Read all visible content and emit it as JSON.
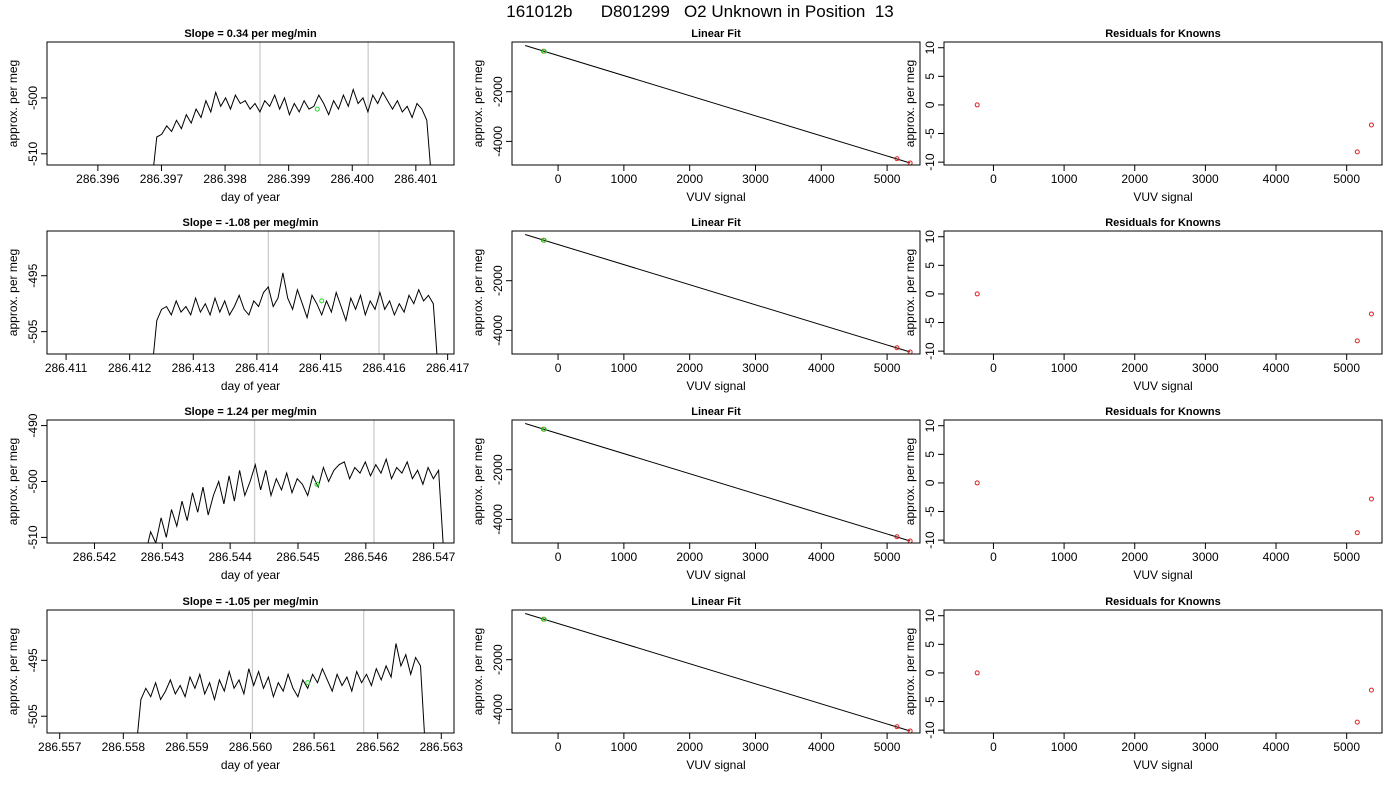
{
  "page_title": "161012b      D801299   O2 Unknown in Position  13",
  "chart_data": [
    {
      "type": "line",
      "panel": "time-series",
      "title": "Slope =  0.34  per meg/min",
      "xlabel": "day of year",
      "ylabel": "approx. per meg",
      "xlim": [
        286.3952,
        286.4016
      ],
      "ylim": [
        -512,
        -490
      ],
      "xticks": [
        "286.396",
        "286.397",
        "286.398",
        "286.399",
        "286.400",
        "286.401"
      ],
      "yticks": [
        "-500",
        "-510"
      ],
      "vlines": [
        286.39855,
        286.40025
      ],
      "x_start": 286.39685,
      "x_end": 286.40125,
      "trace_y": [
        -515,
        -507,
        -506.5,
        -505,
        -506,
        -504,
        -505.5,
        -503,
        -504.5,
        -502,
        -503.5,
        -500.5,
        -502.5,
        -499,
        -501.5,
        -500,
        -502,
        -499.5,
        -501,
        -500.5,
        -502,
        -501,
        -502.5,
        -500.5,
        -501.5,
        -499.5,
        -502,
        -500,
        -503,
        -501,
        -502.5,
        -500.5,
        -502,
        -501.5,
        -499.5,
        -501,
        -503,
        -500.5,
        -502,
        -499.5,
        -501.5,
        -498.5,
        -501,
        -500,
        -502.5,
        -499.5,
        -501,
        -499,
        -500.5,
        -502,
        -500.5,
        -502.5,
        -501.5,
        -503.5,
        -501,
        -502,
        -504,
        -515
      ],
      "marker": {
        "x": 286.39945,
        "y": -502
      }
    },
    {
      "type": "scatter",
      "panel": "linear-fit",
      "title": "Linear Fit",
      "xlabel": "VUV signal",
      "ylabel": "approx. per meg",
      "xlim": [
        -700,
        5500
      ],
      "ylim": [
        -4950,
        0
      ],
      "xticks": [
        0,
        1000,
        2000,
        3000,
        4000,
        5000
      ],
      "yticks": [
        -2000,
        -4000
      ],
      "line": {
        "x": [
          -500,
          5350
        ],
        "y": [
          -140,
          -4870
        ]
      },
      "knowns": [
        {
          "x": -220,
          "y": -370
        },
        {
          "x": 5150,
          "y": -4700
        },
        {
          "x": 5350,
          "y": -4870
        }
      ],
      "unknown": {
        "x": -210,
        "y": -375
      }
    },
    {
      "type": "scatter",
      "panel": "residuals",
      "title": "Residuals for Knowns",
      "xlabel": "VUV signal",
      "ylabel": "approx. per meg",
      "xlim": [
        -700,
        5500
      ],
      "ylim": [
        -10.5,
        11
      ],
      "xticks": [
        0,
        1000,
        2000,
        3000,
        4000,
        5000
      ],
      "yticks": [
        10,
        5,
        0,
        -5,
        -10
      ],
      "points": [
        {
          "x": -230,
          "y": 0
        },
        {
          "x": 5150,
          "y": -8.2
        },
        {
          "x": 5350,
          "y": -3.5
        }
      ]
    },
    {
      "type": "line",
      "panel": "time-series",
      "title": "Slope =  -1.08  per meg/min",
      "xlabel": "day of year",
      "ylabel": "approx. per meg",
      "xlim": [
        286.4107,
        286.4171
      ],
      "ylim": [
        -509,
        -487
      ],
      "xticks": [
        "286.411",
        "286.412",
        "286.413",
        "286.414",
        "286.415",
        "286.416",
        "286.417"
      ],
      "yticks": [
        "-495",
        "-505"
      ],
      "vlines": [
        286.41418,
        286.41592
      ],
      "x_start": 286.41235,
      "x_end": 286.41685,
      "trace_y": [
        -512,
        -503,
        -501,
        -500.5,
        -502,
        -499.5,
        -501.5,
        -500.5,
        -502,
        -499,
        -501.5,
        -500,
        -502,
        -499,
        -501.5,
        -499.5,
        -502,
        -500.5,
        -498.5,
        -501,
        -502,
        -499.5,
        -500.5,
        -498,
        -497,
        -500.5,
        -499,
        -494.5,
        -499,
        -501,
        -497.5,
        -500,
        -502.5,
        -498.5,
        -500,
        -502,
        -499.5,
        -501.5,
        -498,
        -500.5,
        -503,
        -499,
        -501,
        -498.5,
        -502,
        -499.5,
        -501,
        -498,
        -501,
        -499.5,
        -502,
        -500,
        -501.5,
        -498.5,
        -500,
        -497.5,
        -499.5,
        -498.5,
        -500,
        -512
      ],
      "marker": {
        "x": 286.41502,
        "y": -499.5
      }
    },
    {
      "type": "scatter",
      "panel": "linear-fit",
      "title": "Linear Fit",
      "xlabel": "VUV signal",
      "ylabel": "approx. per meg",
      "xlim": [
        -700,
        5500
      ],
      "ylim": [
        -4950,
        0
      ],
      "xticks": [
        0,
        1000,
        2000,
        3000,
        4000,
        5000
      ],
      "yticks": [
        -2000,
        -4000
      ],
      "line": {
        "x": [
          -500,
          5350
        ],
        "y": [
          -140,
          -4870
        ]
      },
      "knowns": [
        {
          "x": -220,
          "y": -370
        },
        {
          "x": 5150,
          "y": -4700
        },
        {
          "x": 5350,
          "y": -4870
        }
      ],
      "unknown": {
        "x": -210,
        "y": -375
      }
    },
    {
      "type": "scatter",
      "panel": "residuals",
      "title": "Residuals for Knowns",
      "xlabel": "VUV signal",
      "ylabel": "approx. per meg",
      "xlim": [
        -700,
        5500
      ],
      "ylim": [
        -10.5,
        11
      ],
      "xticks": [
        0,
        1000,
        2000,
        3000,
        4000,
        5000
      ],
      "yticks": [
        10,
        5,
        0,
        -5,
        -10
      ],
      "points": [
        {
          "x": -230,
          "y": 0
        },
        {
          "x": 5150,
          "y": -8.2
        },
        {
          "x": 5350,
          "y": -3.5
        }
      ]
    },
    {
      "type": "line",
      "panel": "time-series",
      "title": "Slope =  1.24  per meg/min",
      "xlabel": "day of year",
      "ylabel": "approx. per meg",
      "xlim": [
        286.5413,
        286.5473
      ],
      "ylim": [
        -511,
        -489
      ],
      "xticks": [
        "286.542",
        "286.543",
        "286.544",
        "286.545",
        "286.546",
        "286.547"
      ],
      "yticks": [
        "-490",
        "-500",
        "-510"
      ],
      "vlines": [
        286.54436,
        286.54612
      ],
      "x_start": 286.54275,
      "x_end": 286.54715,
      "trace_y": [
        -513,
        -509,
        -511,
        -506.5,
        -510,
        -505,
        -508,
        -503.5,
        -507,
        -502,
        -505.5,
        -501,
        -506,
        -502.5,
        -500,
        -504,
        -499,
        -503.5,
        -498,
        -502.5,
        -500,
        -497,
        -501.5,
        -498,
        -502.5,
        -499.5,
        -501.5,
        -498.5,
        -502,
        -499.5,
        -500.5,
        -502.5,
        -499,
        -501,
        -497.5,
        -500,
        -498,
        -497,
        -496.5,
        -499.5,
        -497.5,
        -498.5,
        -496.5,
        -499,
        -497,
        -498.5,
        -496,
        -499.5,
        -497.5,
        -498.5,
        -496.5,
        -499.5,
        -498,
        -500.5,
        -497.5,
        -499.5,
        -498,
        -513
      ],
      "marker": {
        "x": 286.54528,
        "y": -500.5
      }
    },
    {
      "type": "scatter",
      "panel": "linear-fit",
      "title": "Linear Fit",
      "xlabel": "VUV signal",
      "ylabel": "approx. per meg",
      "xlim": [
        -700,
        5500
      ],
      "ylim": [
        -4950,
        0
      ],
      "xticks": [
        0,
        1000,
        2000,
        3000,
        4000,
        5000
      ],
      "yticks": [
        -2000,
        -4000
      ],
      "line": {
        "x": [
          -500,
          5350
        ],
        "y": [
          -140,
          -4870
        ]
      },
      "knowns": [
        {
          "x": -220,
          "y": -370
        },
        {
          "x": 5150,
          "y": -4700
        },
        {
          "x": 5350,
          "y": -4870
        }
      ],
      "unknown": {
        "x": -210,
        "y": -375
      }
    },
    {
      "type": "scatter",
      "panel": "residuals",
      "title": "Residuals for Knowns",
      "xlabel": "VUV signal",
      "ylabel": "approx. per meg",
      "xlim": [
        -700,
        5500
      ],
      "ylim": [
        -10.5,
        11
      ],
      "xticks": [
        0,
        1000,
        2000,
        3000,
        4000,
        5000
      ],
      "yticks": [
        10,
        5,
        0,
        -5,
        -10
      ],
      "points": [
        {
          "x": -230,
          "y": 0
        },
        {
          "x": 5150,
          "y": -8.7
        },
        {
          "x": 5350,
          "y": -2.8
        }
      ]
    },
    {
      "type": "line",
      "panel": "time-series",
      "title": "Slope =  -1.05  per meg/min",
      "xlabel": "day of year",
      "ylabel": "approx. per meg",
      "xlim": [
        286.5568,
        286.5632
      ],
      "ylim": [
        -508,
        -486
      ],
      "xticks": [
        "286.557",
        "286.558",
        "286.559",
        "286.560",
        "286.561",
        "286.562",
        "286.563"
      ],
      "yticks": [
        "-495",
        "-505"
      ],
      "vlines": [
        286.56003,
        286.56178
      ],
      "x_start": 286.5582,
      "x_end": 286.56275,
      "trace_y": [
        -511,
        -502,
        -500,
        -501.5,
        -499,
        -502,
        -500.5,
        -498.5,
        -501,
        -499.5,
        -501.5,
        -498,
        -500,
        -497.5,
        -501,
        -499,
        -502,
        -498.5,
        -500.5,
        -497,
        -500,
        -498.5,
        -501,
        -496.5,
        -499.5,
        -497,
        -500,
        -498,
        -501.5,
        -499,
        -500.5,
        -497.5,
        -500,
        -501.5,
        -498.5,
        -500,
        -497.5,
        -499,
        -496.5,
        -498.5,
        -500.5,
        -497.5,
        -499.5,
        -498,
        -500.5,
        -497,
        -499,
        -497.5,
        -499.5,
        -496.5,
        -498.5,
        -496,
        -498,
        -492,
        -496,
        -494,
        -497.5,
        -494.5,
        -496,
        -511
      ],
      "marker": {
        "x": 286.5609,
        "y": -499
      }
    },
    {
      "type": "scatter",
      "panel": "linear-fit",
      "title": "Linear Fit",
      "xlabel": "VUV signal",
      "ylabel": "approx. per meg",
      "xlim": [
        -700,
        5500
      ],
      "ylim": [
        -4950,
        0
      ],
      "xticks": [
        0,
        1000,
        2000,
        3000,
        4000,
        5000
      ],
      "yticks": [
        -2000,
        -4000
      ],
      "line": {
        "x": [
          -500,
          5350
        ],
        "y": [
          -140,
          -4870
        ]
      },
      "knowns": [
        {
          "x": -220,
          "y": -370
        },
        {
          "x": 5150,
          "y": -4700
        },
        {
          "x": 5350,
          "y": -4870
        }
      ],
      "unknown": {
        "x": -210,
        "y": -375
      }
    },
    {
      "type": "scatter",
      "panel": "residuals",
      "title": "Residuals for Knowns",
      "xlabel": "VUV signal",
      "ylabel": "approx. per meg",
      "xlim": [
        -700,
        5500
      ],
      "ylim": [
        -10.5,
        11
      ],
      "xticks": [
        0,
        1000,
        2000,
        3000,
        4000,
        5000
      ],
      "yticks": [
        10,
        5,
        0,
        -5,
        -10
      ],
      "points": [
        {
          "x": -230,
          "y": 0
        },
        {
          "x": 5150,
          "y": -8.6
        },
        {
          "x": 5350,
          "y": -3.0
        }
      ]
    }
  ]
}
